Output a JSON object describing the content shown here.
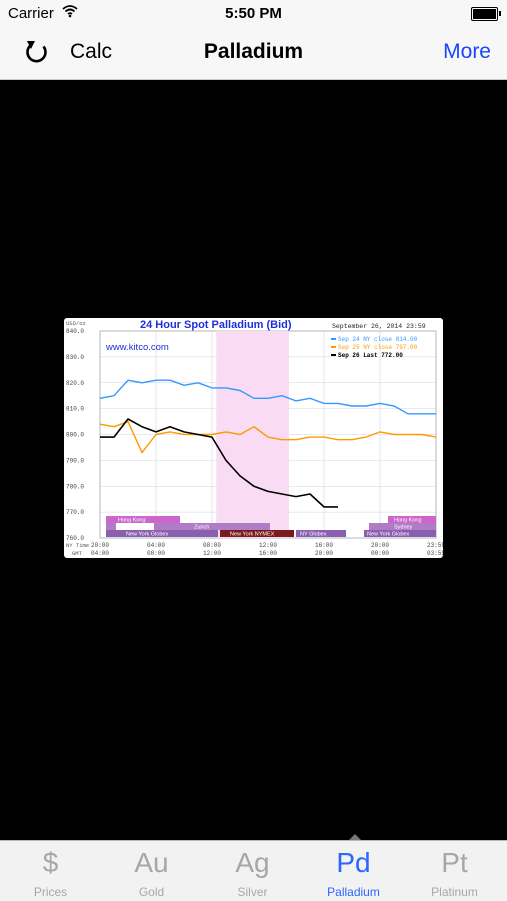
{
  "status": {
    "carrier": "Carrier",
    "time": "5:50 PM"
  },
  "nav": {
    "left": "Calc",
    "title": "Palladium",
    "right": "More"
  },
  "tabs": [
    {
      "symbol": "$",
      "label": "Prices",
      "active": false
    },
    {
      "symbol": "Au",
      "label": "Gold",
      "active": false
    },
    {
      "symbol": "Ag",
      "label": "Silver",
      "active": false
    },
    {
      "symbol": "Pd",
      "label": "Palladium",
      "active": true
    },
    {
      "symbol": "Pt",
      "label": "Platinum",
      "active": false
    }
  ],
  "chart": {
    "title": "24 Hour Spot Palladium (Bid)",
    "date": "September 26, 2014 23:59",
    "site": "www.kitco.com",
    "yunit": "USD/oz",
    "legend": [
      {
        "text": "Sep 24 NY close 814.00",
        "color": "#3399ff"
      },
      {
        "text": "Sep 25 NY close 797.00",
        "color": "#ff9900"
      },
      {
        "text": "Sep 26 Last 772.00",
        "color": "#000000"
      }
    ],
    "markets_row1": [
      "Hong Kong",
      "Hong Kong"
    ],
    "markets_row2": [
      "Zurich",
      "Sydney"
    ],
    "markets_row3": [
      "New York Globex",
      "New York NYMEX",
      "NY Globex",
      "New York Globex"
    ],
    "ny_time_label": "NY Time",
    "gmt_label": "GMT",
    "ny_ticks": [
      "20:00",
      "04:00",
      "08:00",
      "12:00",
      "16:00",
      "20:00",
      "23:59"
    ],
    "gmt_ticks": [
      "04:00",
      "08:00",
      "12:00",
      "16:00",
      "20:00",
      "00:00",
      "03:59"
    ]
  },
  "chart_data": {
    "type": "line",
    "title": "24 Hour Spot Palladium (Bid)",
    "ylabel": "USD/oz",
    "ylim": [
      760,
      840
    ],
    "yticks": [
      "840.0",
      "830.0",
      "820.0",
      "810.0",
      "800.0",
      "790.0",
      "780.0",
      "770.0",
      "760.0"
    ],
    "xlabel": "NY Time",
    "x_hours": [
      0,
      1,
      2,
      3,
      4,
      5,
      6,
      7,
      8,
      9,
      10,
      11,
      12,
      13,
      14,
      15,
      16,
      17,
      18,
      19,
      20,
      21,
      22,
      23,
      24
    ],
    "series": [
      {
        "name": "Sep 24 NY close 814.00",
        "color": "#3399ff",
        "values": [
          814,
          815,
          821,
          820,
          821,
          821,
          819,
          820,
          818,
          818,
          817,
          814,
          814,
          815,
          813,
          814,
          812,
          812,
          811,
          811,
          812,
          811,
          808,
          808,
          808
        ]
      },
      {
        "name": "Sep 25 NY close 797.00",
        "color": "#ff9900",
        "values": [
          804,
          803,
          805,
          793,
          800,
          801,
          800,
          800,
          800,
          801,
          800,
          803,
          799,
          798,
          798,
          799,
          799,
          798,
          798,
          799,
          801,
          800,
          800,
          800,
          799
        ]
      },
      {
        "name": "Sep 26 Last 772.00",
        "color": "#000000",
        "values": [
          799,
          799,
          806,
          803,
          801,
          803,
          801,
          800,
          799,
          790,
          784,
          780,
          778,
          777,
          776,
          777,
          772,
          772
        ]
      }
    ]
  }
}
